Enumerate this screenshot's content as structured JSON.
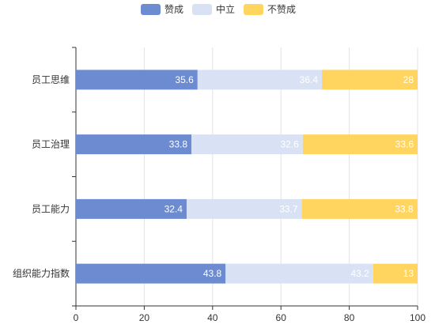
{
  "chart_data": {
    "type": "bar",
    "orientation": "horizontal",
    "stacked": true,
    "categories": [
      "员工思维",
      "员工治理",
      "员工能力",
      "组织能力指数"
    ],
    "series": [
      {
        "name": "赞成",
        "color": "#6c8bd0",
        "label_color": "#ffffff",
        "values": [
          35.6,
          33.8,
          32.4,
          43.8
        ]
      },
      {
        "name": "中立",
        "color": "#d9e2f5",
        "label_color": "#ffffff",
        "values": [
          36.4,
          32.6,
          33.7,
          43.2
        ]
      },
      {
        "name": "不赞成",
        "color": "#ffd45f",
        "label_color": "#ffffff",
        "values": [
          28,
          33.6,
          33.8,
          13
        ]
      }
    ],
    "xlim": [
      0,
      100
    ],
    "xticks": [
      "0",
      "20",
      "40",
      "60",
      "80",
      "100"
    ],
    "grid": true,
    "legend_position": "top-center"
  }
}
